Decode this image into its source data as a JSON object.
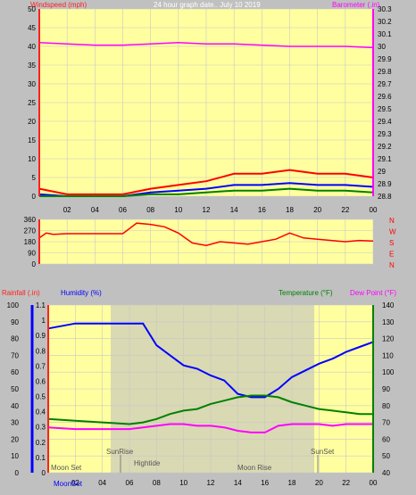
{
  "title": "24 hour graph date.. July 10 2019",
  "colors": {
    "plot_bg": "#ffffa0",
    "grid": "#c8c8c8",
    "wind_axis": "#ff2020",
    "baro_axis": "#ff00ff",
    "red": "#ff0000",
    "blue": "#0000ff",
    "green": "#008000",
    "magenta": "#ff00ff",
    "daylight": "#c0c0c0"
  },
  "x_ticks": [
    "02",
    "04",
    "06",
    "08",
    "10",
    "12",
    "14",
    "16",
    "18",
    "20",
    "22",
    "00"
  ],
  "chart_data": [
    {
      "type": "line",
      "panel": "wind_baro",
      "ylabel_left": "Windspeed (mph)",
      "ylabel_right": "Barometer (.in)",
      "left_ylim": [
        0,
        50
      ],
      "left_ticks": [
        "0",
        "5",
        "10",
        "15",
        "20",
        "25",
        "30",
        "35",
        "40",
        "45",
        "50"
      ],
      "right_ylim": [
        28.8,
        30.3
      ],
      "right_ticks": [
        "28.8",
        "28.9",
        "29",
        "29.1",
        "29.2",
        "29.3",
        "29.4",
        "29.5",
        "29.6",
        "29.7",
        "29.8",
        "29.9",
        "30",
        "30.1",
        "30.2",
        "30.3"
      ],
      "x": [
        0,
        2,
        4,
        6,
        8,
        10,
        12,
        14,
        16,
        18,
        20,
        22,
        24
      ],
      "series": [
        {
          "color": "magenta",
          "axis": "right",
          "values": [
            30.03,
            30.02,
            30.01,
            30.01,
            30.02,
            30.03,
            30.02,
            30.02,
            30.01,
            30,
            30,
            30,
            29.99
          ]
        },
        {
          "color": "red",
          "axis": "left",
          "values": [
            2,
            0.5,
            0.5,
            0.5,
            2,
            3,
            4,
            6,
            6,
            7,
            6,
            6,
            5
          ]
        },
        {
          "color": "blue",
          "axis": "left",
          "values": [
            0.5,
            0,
            0,
            0,
            1,
            1.5,
            2,
            3,
            3,
            3.5,
            3,
            3,
            2.5
          ]
        },
        {
          "color": "green",
          "axis": "left",
          "values": [
            0,
            0,
            0,
            0,
            0.5,
            0.5,
            1,
            1.5,
            1.5,
            2,
            1.5,
            1.5,
            1
          ]
        }
      ],
      "grid": true
    },
    {
      "type": "line",
      "panel": "direction",
      "ylabel_right": "N W S E N",
      "ylim": [
        0,
        360
      ],
      "ticks": [
        "0",
        "90",
        "180",
        "270",
        "360"
      ],
      "compass": [
        "N",
        "W",
        "S",
        "E",
        "N"
      ],
      "x": [
        0,
        0.5,
        1,
        2,
        4,
        6,
        7,
        8,
        9,
        10,
        11,
        12,
        13,
        14,
        15,
        16,
        17,
        18,
        19,
        20,
        21,
        22,
        23,
        24
      ],
      "series": [
        {
          "color": "red",
          "values": [
            210,
            250,
            240,
            245,
            245,
            245,
            330,
            320,
            300,
            250,
            170,
            150,
            180,
            170,
            160,
            180,
            200,
            250,
            210,
            200,
            190,
            180,
            190,
            185
          ]
        }
      ],
      "grid": true
    },
    {
      "type": "line",
      "panel": "rain_humidity_temp",
      "ylabel_left": "Rainfall (.in)",
      "ylabel_left2": "Humidity (%)",
      "ylabel_right": "Temperature (°F)",
      "ylabel_right2": "Dew Point (°F)",
      "rain_ylim": [
        0,
        1.1
      ],
      "rain_ticks": [
        "0",
        "0.1",
        "0.2",
        "0.3",
        "0.4",
        "0.5",
        "0.6",
        "0.7",
        "0.8",
        "0.9",
        "1",
        "1.1"
      ],
      "hum_ylim": [
        0,
        100
      ],
      "hum_ticks": [
        "0",
        "10",
        "20",
        "30",
        "40",
        "50",
        "60",
        "70",
        "80",
        "90",
        "100"
      ],
      "temp_ylim": [
        40,
        140
      ],
      "temp_ticks": [
        "40",
        "50",
        "60",
        "70",
        "80",
        "90",
        "100",
        "110",
        "120",
        "130",
        "140"
      ],
      "x": [
        0,
        2,
        4,
        6,
        7,
        8,
        9,
        10,
        11,
        12,
        13,
        14,
        15,
        16,
        17,
        18,
        19,
        20,
        21,
        22,
        23,
        24
      ],
      "series": [
        {
          "name": "Humidity",
          "color": "blue",
          "axis": "hum",
          "values": [
            86,
            89,
            89,
            89,
            89,
            76,
            70,
            64,
            62,
            58,
            55,
            47,
            45,
            45,
            50,
            57,
            61,
            65,
            68,
            72,
            75,
            78
          ]
        },
        {
          "name": "Temperature",
          "color": "green",
          "axis": "temp",
          "values": [
            72,
            71,
            70,
            69,
            70,
            72,
            75,
            77,
            78,
            81,
            83,
            85,
            86,
            86,
            85,
            82,
            80,
            78,
            77,
            76,
            75,
            75
          ]
        },
        {
          "name": "Dew Point",
          "color": "magenta",
          "axis": "temp",
          "values": [
            67,
            66,
            66,
            66,
            67,
            68,
            69,
            69,
            68,
            68,
            67,
            65,
            64,
            64,
            68,
            69,
            69,
            69,
            68,
            69,
            69,
            69
          ]
        }
      ],
      "annotations": [
        "SunRise",
        "Hightide",
        "SunSet",
        "Moon Set",
        "Moon Rise",
        "MoonSet"
      ],
      "grid": true
    }
  ]
}
